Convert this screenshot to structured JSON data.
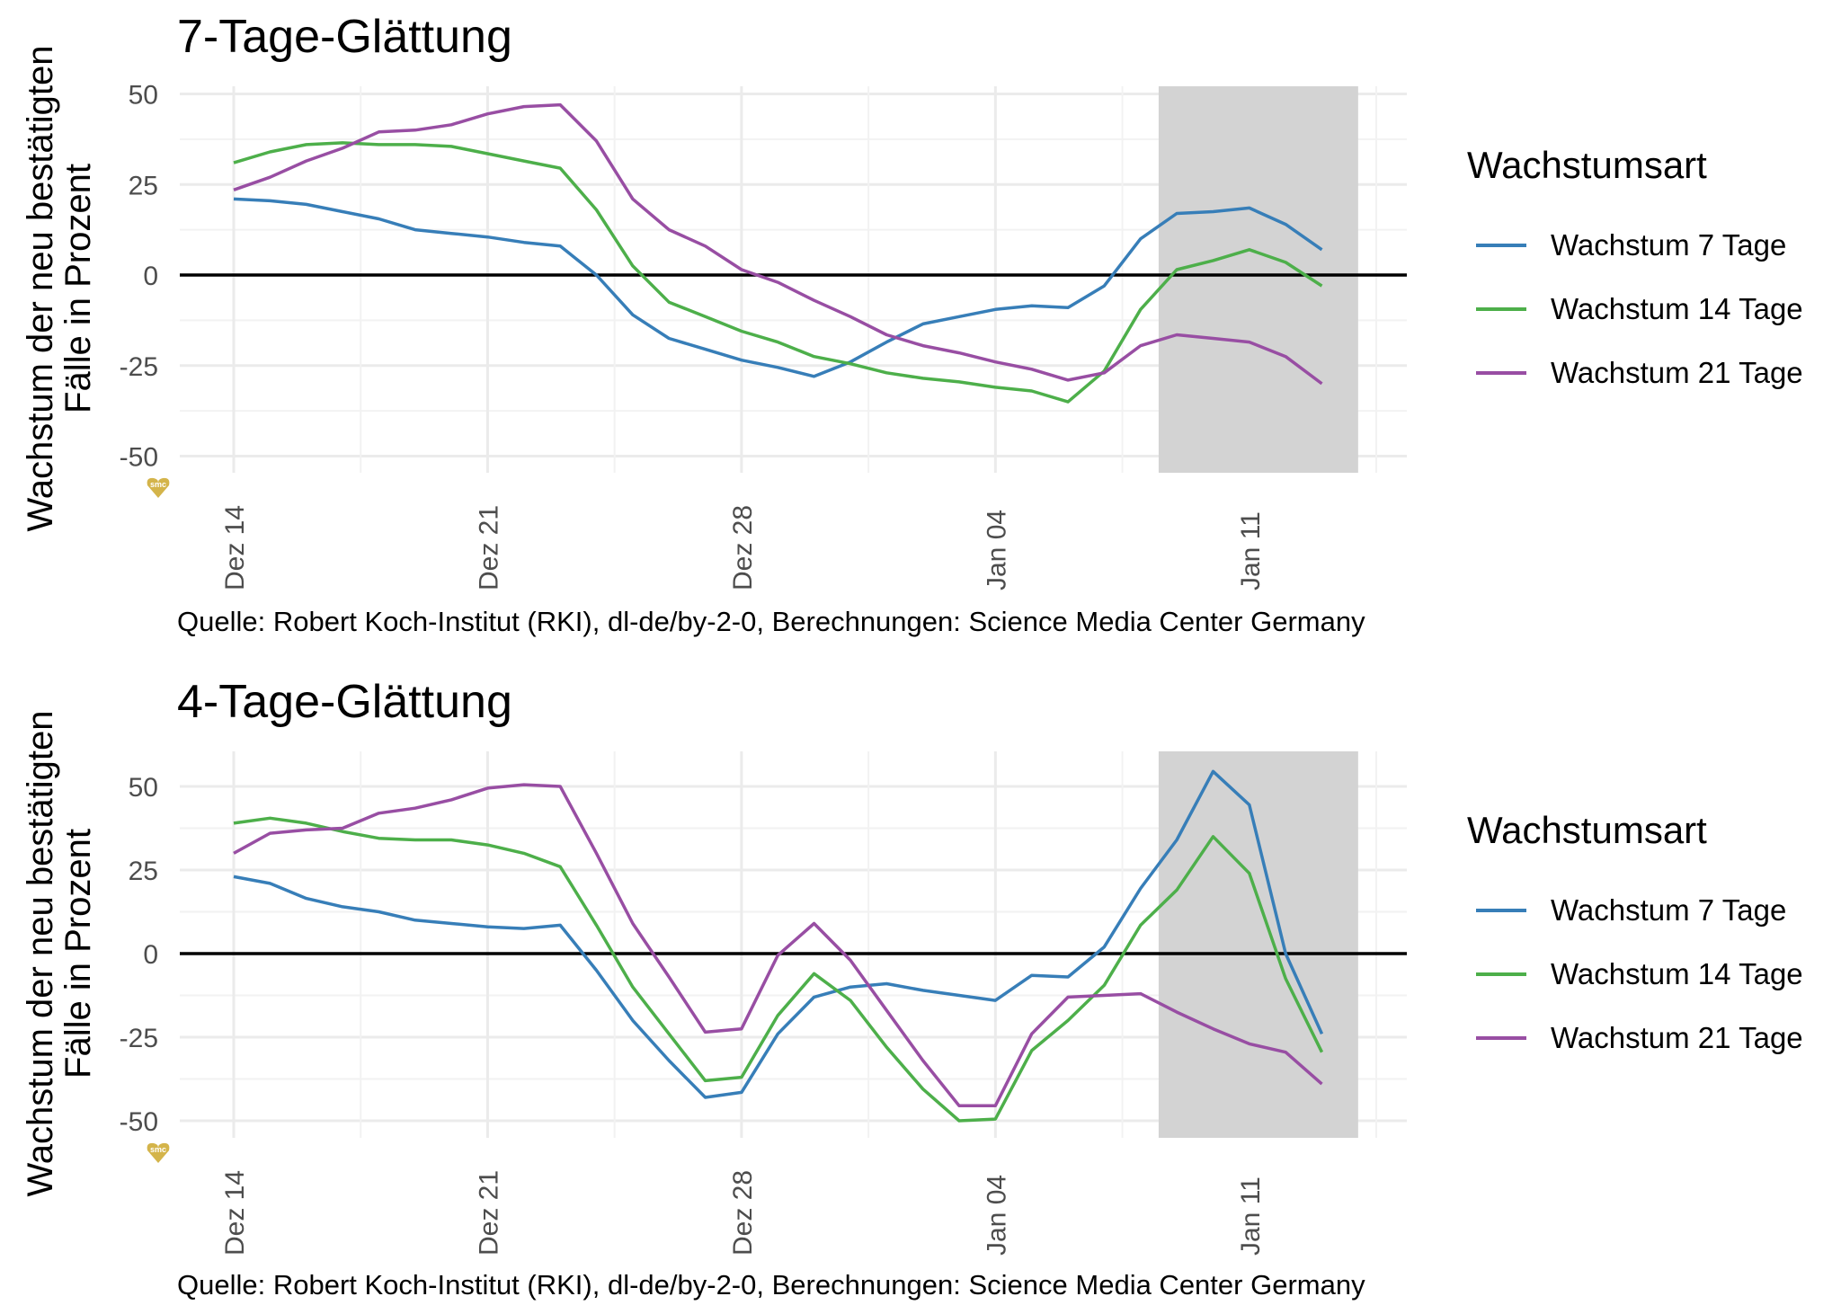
{
  "chart_data": [
    {
      "type": "line",
      "title": "7-Tage-Glättung",
      "ylabel": "Wachstum der neu bestätigten Fälle in Prozent",
      "ylabel_lines": [
        "Wachstum der neu bestätigten",
        "Fälle in Prozent"
      ],
      "xlabel": "",
      "x_ticks": [
        {
          "day": 0,
          "label": "Dez 14"
        },
        {
          "day": 7,
          "label": "Dez 21"
        },
        {
          "day": 14,
          "label": "Dez 28"
        },
        {
          "day": 21,
          "label": "Jan 04"
        },
        {
          "day": 28,
          "label": "Jan 11"
        }
      ],
      "y_ticks": [
        50,
        25,
        0,
        -25,
        -50
      ],
      "y_tick_labels": [
        "50",
        "25",
        "0",
        "-25",
        "-50"
      ],
      "xlim": [
        -1,
        31.5
      ],
      "ylim": [
        -55,
        52
      ],
      "shaded_region": {
        "from_day": 25.5,
        "to_day": 31,
        "color": "#d3d3d3"
      },
      "zero_line": true,
      "x_day_offset": "day 0 = Dez 14",
      "series": [
        {
          "name": "Wachstum 7 Tage",
          "color": "#377eb8",
          "values": [
            21,
            20.5,
            19.5,
            17.5,
            15.5,
            12.5,
            11.5,
            10.5,
            9,
            8,
            0,
            -11,
            -17.5,
            -20.5,
            -23.5,
            -25.5,
            -28,
            -24,
            -18.5,
            -13.5,
            -11.5,
            -9.5,
            -8.5,
            -9,
            -3,
            10,
            17,
            17.5,
            18.5,
            14,
            7
          ]
        },
        {
          "name": "Wachstum 14 Tage",
          "color": "#4daf4a",
          "values": [
            31,
            34,
            36,
            36.5,
            36,
            36,
            35.5,
            33.5,
            31.5,
            29.5,
            18,
            2.5,
            -7.5,
            -11.5,
            -15.5,
            -18.5,
            -22.5,
            -24.5,
            -27,
            -28.5,
            -29.5,
            -31,
            -32,
            -35,
            -26.5,
            -9.5,
            1.5,
            4,
            7,
            3.5,
            -3
          ]
        },
        {
          "name": "Wachstum 21 Tage",
          "color": "#984ea3",
          "values": [
            23.5,
            27,
            31.5,
            35,
            39.5,
            40,
            41.5,
            44.5,
            46.5,
            47,
            37,
            21,
            12.5,
            8,
            1.5,
            -2,
            -7,
            -11.5,
            -16.5,
            -19.5,
            -21.5,
            -24,
            -26,
            -29,
            -27,
            -19.5,
            -16.5,
            -17.5,
            -18.5,
            -22.5,
            -30
          ]
        }
      ],
      "legend": {
        "title": "Wachstumsart",
        "position": "right"
      },
      "caption": "Quelle: Robert Koch-Institut (RKI), dl-de/by-2-0, Berechnungen: Science Media Center Germany",
      "watermark": "smc"
    },
    {
      "type": "line",
      "title": "4-Tage-Glättung",
      "ylabel": "Wachstum der neu bestätigten Fälle in Prozent",
      "ylabel_lines": [
        "Wachstum der neu bestätigten",
        "Fälle in Prozent"
      ],
      "xlabel": "",
      "x_ticks": [
        {
          "day": 0,
          "label": "Dez 14"
        },
        {
          "day": 7,
          "label": "Dez 21"
        },
        {
          "day": 14,
          "label": "Dez 28"
        },
        {
          "day": 21,
          "label": "Jan 04"
        },
        {
          "day": 28,
          "label": "Jan 11"
        }
      ],
      "y_ticks": [
        50,
        25,
        0,
        -25,
        -50
      ],
      "y_tick_labels": [
        "50",
        "25",
        "0",
        "-25",
        "-50"
      ],
      "xlim": [
        -1,
        31.5
      ],
      "ylim": [
        -55,
        60
      ],
      "shaded_region": {
        "from_day": 25.5,
        "to_day": 31,
        "color": "#d3d3d3"
      },
      "zero_line": true,
      "x_day_offset": "day 0 = Dez 14",
      "series": [
        {
          "name": "Wachstum 7 Tage",
          "color": "#377eb8",
          "values": [
            23,
            21,
            16.5,
            14,
            12.5,
            10,
            9,
            8,
            7.5,
            8.5,
            -5,
            -20,
            -32,
            -43,
            -41.5,
            -24,
            -13,
            -10,
            -9,
            -11,
            -12.5,
            -14,
            -6.5,
            -7,
            2,
            19.5,
            34,
            54.5,
            44.5,
            0,
            -24
          ]
        },
        {
          "name": "Wachstum 14 Tage",
          "color": "#4daf4a",
          "values": [
            39,
            40.5,
            39,
            36.5,
            34.5,
            34,
            34,
            32.5,
            30,
            26,
            8.5,
            -10,
            -24,
            -38,
            -37,
            -18.5,
            -6,
            -14,
            -28,
            -40.5,
            -50,
            -49.5,
            -29,
            -20,
            -9.5,
            8.5,
            19,
            35,
            24,
            -7.5,
            -29.5
          ]
        },
        {
          "name": "Wachstum 21 Tage",
          "color": "#984ea3",
          "values": [
            30,
            36,
            37,
            37.5,
            42,
            43.5,
            46,
            49.5,
            50.5,
            50,
            30,
            9,
            -7,
            -23.5,
            -22.5,
            -0.5,
            9,
            -2,
            -17,
            -32,
            -45.5,
            -45.5,
            -24,
            -13,
            -12.5,
            -12,
            -17.5,
            -22.5,
            -27,
            -29.5,
            -39
          ]
        }
      ],
      "legend": {
        "title": "Wachstumsart",
        "position": "right"
      },
      "caption": "Quelle: Robert Koch-Institut (RKI), dl-de/by-2-0, Berechnungen: Science Media Center Germany",
      "watermark": "smc"
    }
  ]
}
